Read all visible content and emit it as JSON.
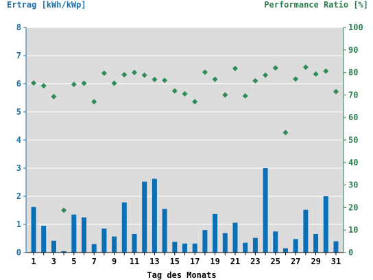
{
  "chart_data": {
    "type": "bar+scatter",
    "ylabel_left": "Ertrag [kWh/kWp]",
    "ylabel_right": "Performance Ratio [%]",
    "xlabel": "Tag des Monats",
    "ylim_left": [
      0,
      8
    ],
    "ylim_right": [
      0,
      100
    ],
    "yticks_left": [
      0,
      1,
      2,
      3,
      4,
      5,
      6,
      7,
      8
    ],
    "yticks_right": [
      0,
      10,
      20,
      30,
      40,
      50,
      60,
      70,
      80,
      90,
      100
    ],
    "xticks": [
      1,
      3,
      5,
      7,
      9,
      11,
      13,
      15,
      17,
      19,
      21,
      23,
      25,
      27,
      29,
      31
    ],
    "days": [
      1,
      2,
      3,
      4,
      5,
      6,
      7,
      8,
      9,
      10,
      11,
      12,
      13,
      14,
      15,
      16,
      17,
      18,
      19,
      20,
      21,
      22,
      23,
      24,
      25,
      26,
      27,
      28,
      29,
      30,
      31
    ],
    "series": [
      {
        "kind": "bar",
        "axis": "left",
        "color": "#0a6fb5",
        "values": [
          1.62,
          0.95,
          0.42,
          0.05,
          1.35,
          1.25,
          0.3,
          0.85,
          0.57,
          1.78,
          0.66,
          2.52,
          2.62,
          1.55,
          0.38,
          0.32,
          0.32,
          0.8,
          1.37,
          0.69,
          1.06,
          0.35,
          0.52,
          3.0,
          0.75,
          0.15,
          0.48,
          1.52,
          0.66,
          2.0,
          0.4
        ]
      },
      {
        "kind": "scatter",
        "axis": "right",
        "color": "#2e8b57",
        "values": [
          75.3,
          74.1,
          69.3,
          18.8,
          74.7,
          75.2,
          67.0,
          79.7,
          75.2,
          79.0,
          80.0,
          78.8,
          76.9,
          76.5,
          71.8,
          70.5,
          67.0,
          80.1,
          77.0,
          70.0,
          81.8,
          69.6,
          76.3,
          78.8,
          82.0,
          53.3,
          77.1,
          82.3,
          79.3,
          80.6,
          71.5
        ]
      }
    ],
    "colors": {
      "plot_background": "#dcdcdc",
      "left_axis": "#1a6fa8",
      "right_axis": "#2e7d4f"
    }
  }
}
